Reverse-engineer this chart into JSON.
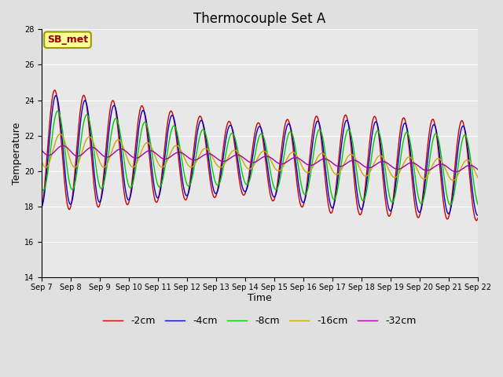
{
  "title": "Thermocouple Set A",
  "xlabel": "Time",
  "ylabel": "Temperature",
  "ylim": [
    14,
    28
  ],
  "yticks": [
    14,
    16,
    18,
    20,
    22,
    24,
    26,
    28
  ],
  "x_tick_labels": [
    "Sep 7",
    "Sep 8",
    "Sep 9",
    "Sep 10",
    "Sep 11",
    "Sep 12",
    "Sep 13",
    "Sep 14",
    "Sep 15",
    "Sep 16",
    "Sep 17",
    "Sep 18",
    "Sep 19",
    "Sep 20",
    "Sep 21",
    "Sep 22"
  ],
  "series_colors": [
    "#cc0000",
    "#0000cc",
    "#00cc00",
    "#ccaa00",
    "#aa00aa"
  ],
  "series_labels": [
    "-2cm",
    "-4cm",
    "-8cm",
    "-16cm",
    "-32cm"
  ],
  "background_color": "#e0e0e0",
  "plot_bg_color": "#e8e8e8",
  "annotation_text": "SB_met",
  "annotation_fg": "#990000",
  "annotation_bg": "#ffff99",
  "annotation_border": "#999900",
  "grid_color": "#ffffff",
  "title_fontsize": 12,
  "axis_fontsize": 9,
  "tick_fontsize": 7,
  "legend_fontsize": 9
}
